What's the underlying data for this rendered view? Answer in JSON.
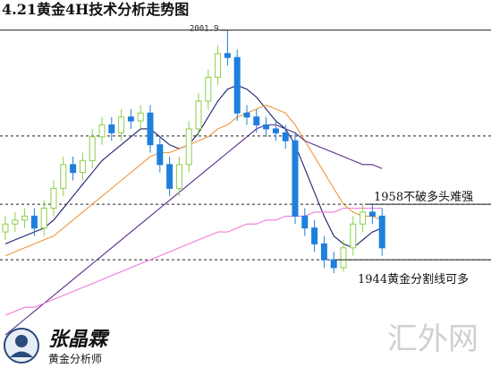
{
  "chart_data": {
    "type": "candlestick",
    "title": "4.21黄金4H技术分析走势图",
    "ylim": [
      1916.7,
      2009.5
    ],
    "open": [
      1951,
      1953,
      1954,
      1955,
      1952,
      1957,
      1962,
      1968,
      1966,
      1969,
      1975,
      1978,
      1976,
      1980,
      1979,
      1981,
      1973,
      1968,
      1962,
      1968,
      1977,
      1984,
      1990,
      1996,
      1995,
      1981,
      1980,
      1978,
      1977,
      1976,
      1974,
      1955,
      1952,
      1948,
      1944,
      1942,
      1947,
      1953,
      1956,
      1955
    ],
    "high": [
      1955,
      1956,
      1957,
      1957,
      1959,
      1964,
      1970,
      1970,
      1971,
      1977,
      1980,
      1980,
      1982,
      1982,
      1983,
      1983,
      1975,
      1970,
      1970,
      1979,
      1986,
      1992,
      1998,
      2001.9,
      1997,
      1983,
      1982,
      1980,
      1979,
      1978,
      1976,
      1957,
      1954,
      1950,
      1946,
      1949,
      1955,
      1958,
      1958,
      1957
    ],
    "low": [
      1949,
      1951,
      1952,
      1950,
      1950,
      1955,
      1960,
      1964,
      1964,
      1967,
      1973,
      1974,
      1974,
      1977,
      1977,
      1971,
      1966,
      1960,
      1960,
      1966,
      1975,
      1982,
      1988,
      1993,
      1979,
      1978,
      1976,
      1975,
      1974,
      1972,
      1953,
      1950,
      1946,
      1942,
      1940.6,
      1941,
      1945,
      1951,
      1953,
      1945
    ],
    "close": [
      1953,
      1954,
      1955,
      1952,
      1957,
      1962,
      1968,
      1966,
      1969,
      1975,
      1978,
      1976,
      1980,
      1979,
      1981,
      1973,
      1968,
      1962,
      1968,
      1977,
      1984,
      1990,
      1996,
      1995,
      1981,
      1980,
      1978,
      1977,
      1976,
      1974,
      1955,
      1952,
      1948,
      1944,
      1942,
      1947,
      1953,
      1956,
      1955,
      1947
    ],
    "up_color": "#8ccf4a",
    "down_color": "#1f7fdc",
    "series": [
      {
        "color": "#1a1f6e",
        "values": [
          1948,
          1949,
          1950,
          1951,
          1952,
          1954,
          1957,
          1960,
          1963,
          1966,
          1969,
          1971,
          1973,
          1975,
          1977,
          1977,
          1975,
          1973,
          1972,
          1973,
          1976,
          1980,
          1984,
          1987,
          1988,
          1987,
          1985,
          1982,
          1979,
          1977,
          1973,
          1967,
          1961,
          1955,
          1950,
          1948,
          1947,
          1949,
          1951,
          1952
        ]
      },
      {
        "color": "#f0963c",
        "values": [
          1945,
          1946,
          1947,
          1948,
          1949,
          1950,
          1952,
          1954,
          1956,
          1958,
          1960,
          1962,
          1964,
          1966,
          1968,
          1970,
          1971,
          1971,
          1972,
          1973,
          1974,
          1975,
          1977,
          1978,
          1980,
          1981,
          1982,
          1983,
          1982,
          1981,
          1978,
          1974,
          1970,
          1966,
          1962,
          1958,
          1956,
          1955,
          1955,
          1954
        ]
      },
      {
        "color": "#5a2a8c",
        "values": [
          1925,
          1927,
          1929,
          1931,
          1933,
          1935,
          1937,
          1939,
          1941,
          1943,
          1945,
          1947,
          1949,
          1951,
          1953,
          1955,
          1957,
          1959,
          1961,
          1963,
          1965,
          1967,
          1969,
          1971,
          1973,
          1975,
          1977,
          1978,
          1978,
          1977,
          1976,
          1974,
          1973,
          1972,
          1971,
          1970,
          1969,
          1968,
          1968,
          1967
        ]
      },
      {
        "color": "#f07ad8",
        "values": [
          1930,
          1931,
          1932,
          1932,
          1933,
          1934,
          1935,
          1936,
          1937,
          1938,
          1939,
          1940,
          1941,
          1942,
          1943,
          1944,
          1945,
          1946,
          1947,
          1948,
          1949,
          1950,
          1951,
          1951,
          1952,
          1953,
          1953,
          1954,
          1954,
          1955,
          1955,
          1955,
          1956,
          1956,
          1956,
          1957,
          1957,
          1957,
          1957,
          1957
        ]
      }
    ],
    "levels": [
      {
        "value": 2001.9,
        "style": "solid"
      },
      {
        "value": 1975.2,
        "style": "dashed"
      },
      {
        "value": 1958,
        "style": "dashed"
      },
      {
        "value": 1944,
        "style": "dashed"
      }
    ],
    "high_label": "2001.9",
    "annotations": [
      {
        "text": "1958不破多头难强",
        "value": 1958
      },
      {
        "text": "1944黄金分割线可多",
        "value": 1944
      }
    ]
  },
  "logo": {
    "name": "张晶霖",
    "subtitle": "黄金分析师"
  },
  "watermark": "汇外网"
}
